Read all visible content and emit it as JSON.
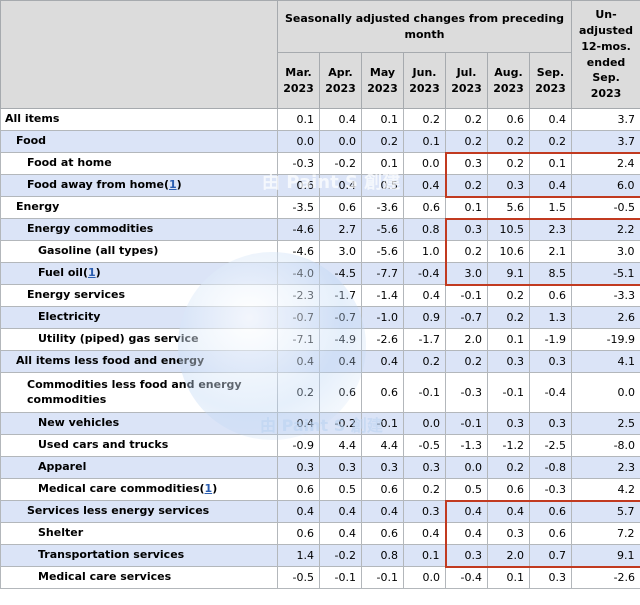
{
  "watermark": {
    "text": "由 Paint S 創建"
  },
  "table": {
    "group_header": "Seasonally adjusted changes from preceding month",
    "unadjusted_header": "Un-\nadjusted\n12-mos.\nended\nSep.\n2023",
    "months": [
      "Mar.\n2023",
      "Apr.\n2023",
      "May\n2023",
      "Jun.\n2023",
      "Jul.\n2023",
      "Aug.\n2023",
      "Sep.\n2023"
    ],
    "footnote_symbol": "1",
    "highlight_color": "#c13a20",
    "rows": [
      {
        "label": "All items",
        "indent": 0,
        "footnote": false,
        "tall": false,
        "hl": null,
        "values": [
          "0.1",
          "0.4",
          "0.1",
          "0.2",
          "0.2",
          "0.6",
          "0.4",
          "3.7"
        ]
      },
      {
        "label": "Food",
        "indent": 1,
        "footnote": false,
        "tall": false,
        "hl": null,
        "values": [
          "0.0",
          "0.0",
          "0.2",
          "0.1",
          "0.2",
          "0.2",
          "0.2",
          "3.7"
        ]
      },
      {
        "label": "Food at home",
        "indent": 2,
        "footnote": false,
        "tall": false,
        "hl": "top",
        "values": [
          "-0.3",
          "-0.2",
          "0.1",
          "0.0",
          "0.3",
          "0.2",
          "0.1",
          "2.4"
        ]
      },
      {
        "label": "Food away from home",
        "indent": 2,
        "footnote": true,
        "tall": false,
        "hl": "bottom",
        "values": [
          "0.6",
          "0.4",
          "0.5",
          "0.4",
          "0.2",
          "0.3",
          "0.4",
          "6.0"
        ]
      },
      {
        "label": "Energy",
        "indent": 1,
        "footnote": false,
        "tall": false,
        "hl": null,
        "values": [
          "-3.5",
          "0.6",
          "-3.6",
          "0.6",
          "0.1",
          "5.6",
          "1.5",
          "-0.5"
        ]
      },
      {
        "label": "Energy commodities",
        "indent": 2,
        "footnote": false,
        "tall": false,
        "hl": "top",
        "values": [
          "-4.6",
          "2.7",
          "-5.6",
          "0.8",
          "0.3",
          "10.5",
          "2.3",
          "2.2"
        ]
      },
      {
        "label": "Gasoline (all types)",
        "indent": 3,
        "footnote": false,
        "tall": false,
        "hl": "mid",
        "values": [
          "-4.6",
          "3.0",
          "-5.6",
          "1.0",
          "0.2",
          "10.6",
          "2.1",
          "3.0"
        ]
      },
      {
        "label": "Fuel oil",
        "indent": 3,
        "footnote": true,
        "tall": false,
        "hl": "bottom",
        "values": [
          "-4.0",
          "-4.5",
          "-7.7",
          "-0.4",
          "3.0",
          "9.1",
          "8.5",
          "-5.1"
        ]
      },
      {
        "label": "Energy services",
        "indent": 2,
        "footnote": false,
        "tall": false,
        "hl": null,
        "values": [
          "-2.3",
          "-1.7",
          "-1.4",
          "0.4",
          "-0.1",
          "0.2",
          "0.6",
          "-3.3"
        ]
      },
      {
        "label": "Electricity",
        "indent": 3,
        "footnote": false,
        "tall": false,
        "hl": null,
        "values": [
          "-0.7",
          "-0.7",
          "-1.0",
          "0.9",
          "-0.7",
          "0.2",
          "1.3",
          "2.6"
        ]
      },
      {
        "label": "Utility (piped) gas service",
        "indent": 3,
        "footnote": false,
        "tall": false,
        "hl": null,
        "values": [
          "-7.1",
          "-4.9",
          "-2.6",
          "-1.7",
          "2.0",
          "0.1",
          "-1.9",
          "-19.9"
        ]
      },
      {
        "label": "All items less food and energy",
        "indent": 1,
        "footnote": false,
        "tall": false,
        "hl": null,
        "values": [
          "0.4",
          "0.4",
          "0.4",
          "0.2",
          "0.2",
          "0.3",
          "0.3",
          "4.1"
        ]
      },
      {
        "label": "Commodities less food and energy commodities",
        "indent": 2,
        "footnote": false,
        "tall": true,
        "hl": null,
        "values": [
          "0.2",
          "0.6",
          "0.6",
          "-0.1",
          "-0.3",
          "-0.1",
          "-0.4",
          "0.0"
        ]
      },
      {
        "label": "New vehicles",
        "indent": 3,
        "footnote": false,
        "tall": false,
        "hl": null,
        "values": [
          "0.4",
          "-0.2",
          "-0.1",
          "0.0",
          "-0.1",
          "0.3",
          "0.3",
          "2.5"
        ]
      },
      {
        "label": "Used cars and trucks",
        "indent": 3,
        "footnote": false,
        "tall": false,
        "hl": null,
        "values": [
          "-0.9",
          "4.4",
          "4.4",
          "-0.5",
          "-1.3",
          "-1.2",
          "-2.5",
          "-8.0"
        ]
      },
      {
        "label": "Apparel",
        "indent": 3,
        "footnote": false,
        "tall": false,
        "hl": null,
        "values": [
          "0.3",
          "0.3",
          "0.3",
          "0.3",
          "0.0",
          "0.2",
          "-0.8",
          "2.3"
        ]
      },
      {
        "label": "Medical care commodities",
        "indent": 3,
        "footnote": true,
        "tall": false,
        "hl": null,
        "values": [
          "0.6",
          "0.5",
          "0.6",
          "0.2",
          "0.5",
          "0.6",
          "-0.3",
          "4.2"
        ]
      },
      {
        "label": "Services less energy services",
        "indent": 2,
        "footnote": false,
        "tall": false,
        "hl": "top",
        "values": [
          "0.4",
          "0.4",
          "0.4",
          "0.3",
          "0.4",
          "0.4",
          "0.6",
          "5.7"
        ]
      },
      {
        "label": "Shelter",
        "indent": 3,
        "footnote": false,
        "tall": false,
        "hl": "mid",
        "values": [
          "0.6",
          "0.4",
          "0.6",
          "0.4",
          "0.4",
          "0.3",
          "0.6",
          "7.2"
        ]
      },
      {
        "label": "Transportation services",
        "indent": 3,
        "footnote": false,
        "tall": false,
        "hl": "bottom",
        "values": [
          "1.4",
          "-0.2",
          "0.8",
          "0.1",
          "0.3",
          "2.0",
          "0.7",
          "9.1"
        ]
      },
      {
        "label": "Medical care services",
        "indent": 3,
        "footnote": false,
        "tall": false,
        "hl": null,
        "values": [
          "-0.5",
          "-0.1",
          "-0.1",
          "0.0",
          "-0.4",
          "0.1",
          "0.3",
          "-2.6"
        ]
      }
    ]
  }
}
